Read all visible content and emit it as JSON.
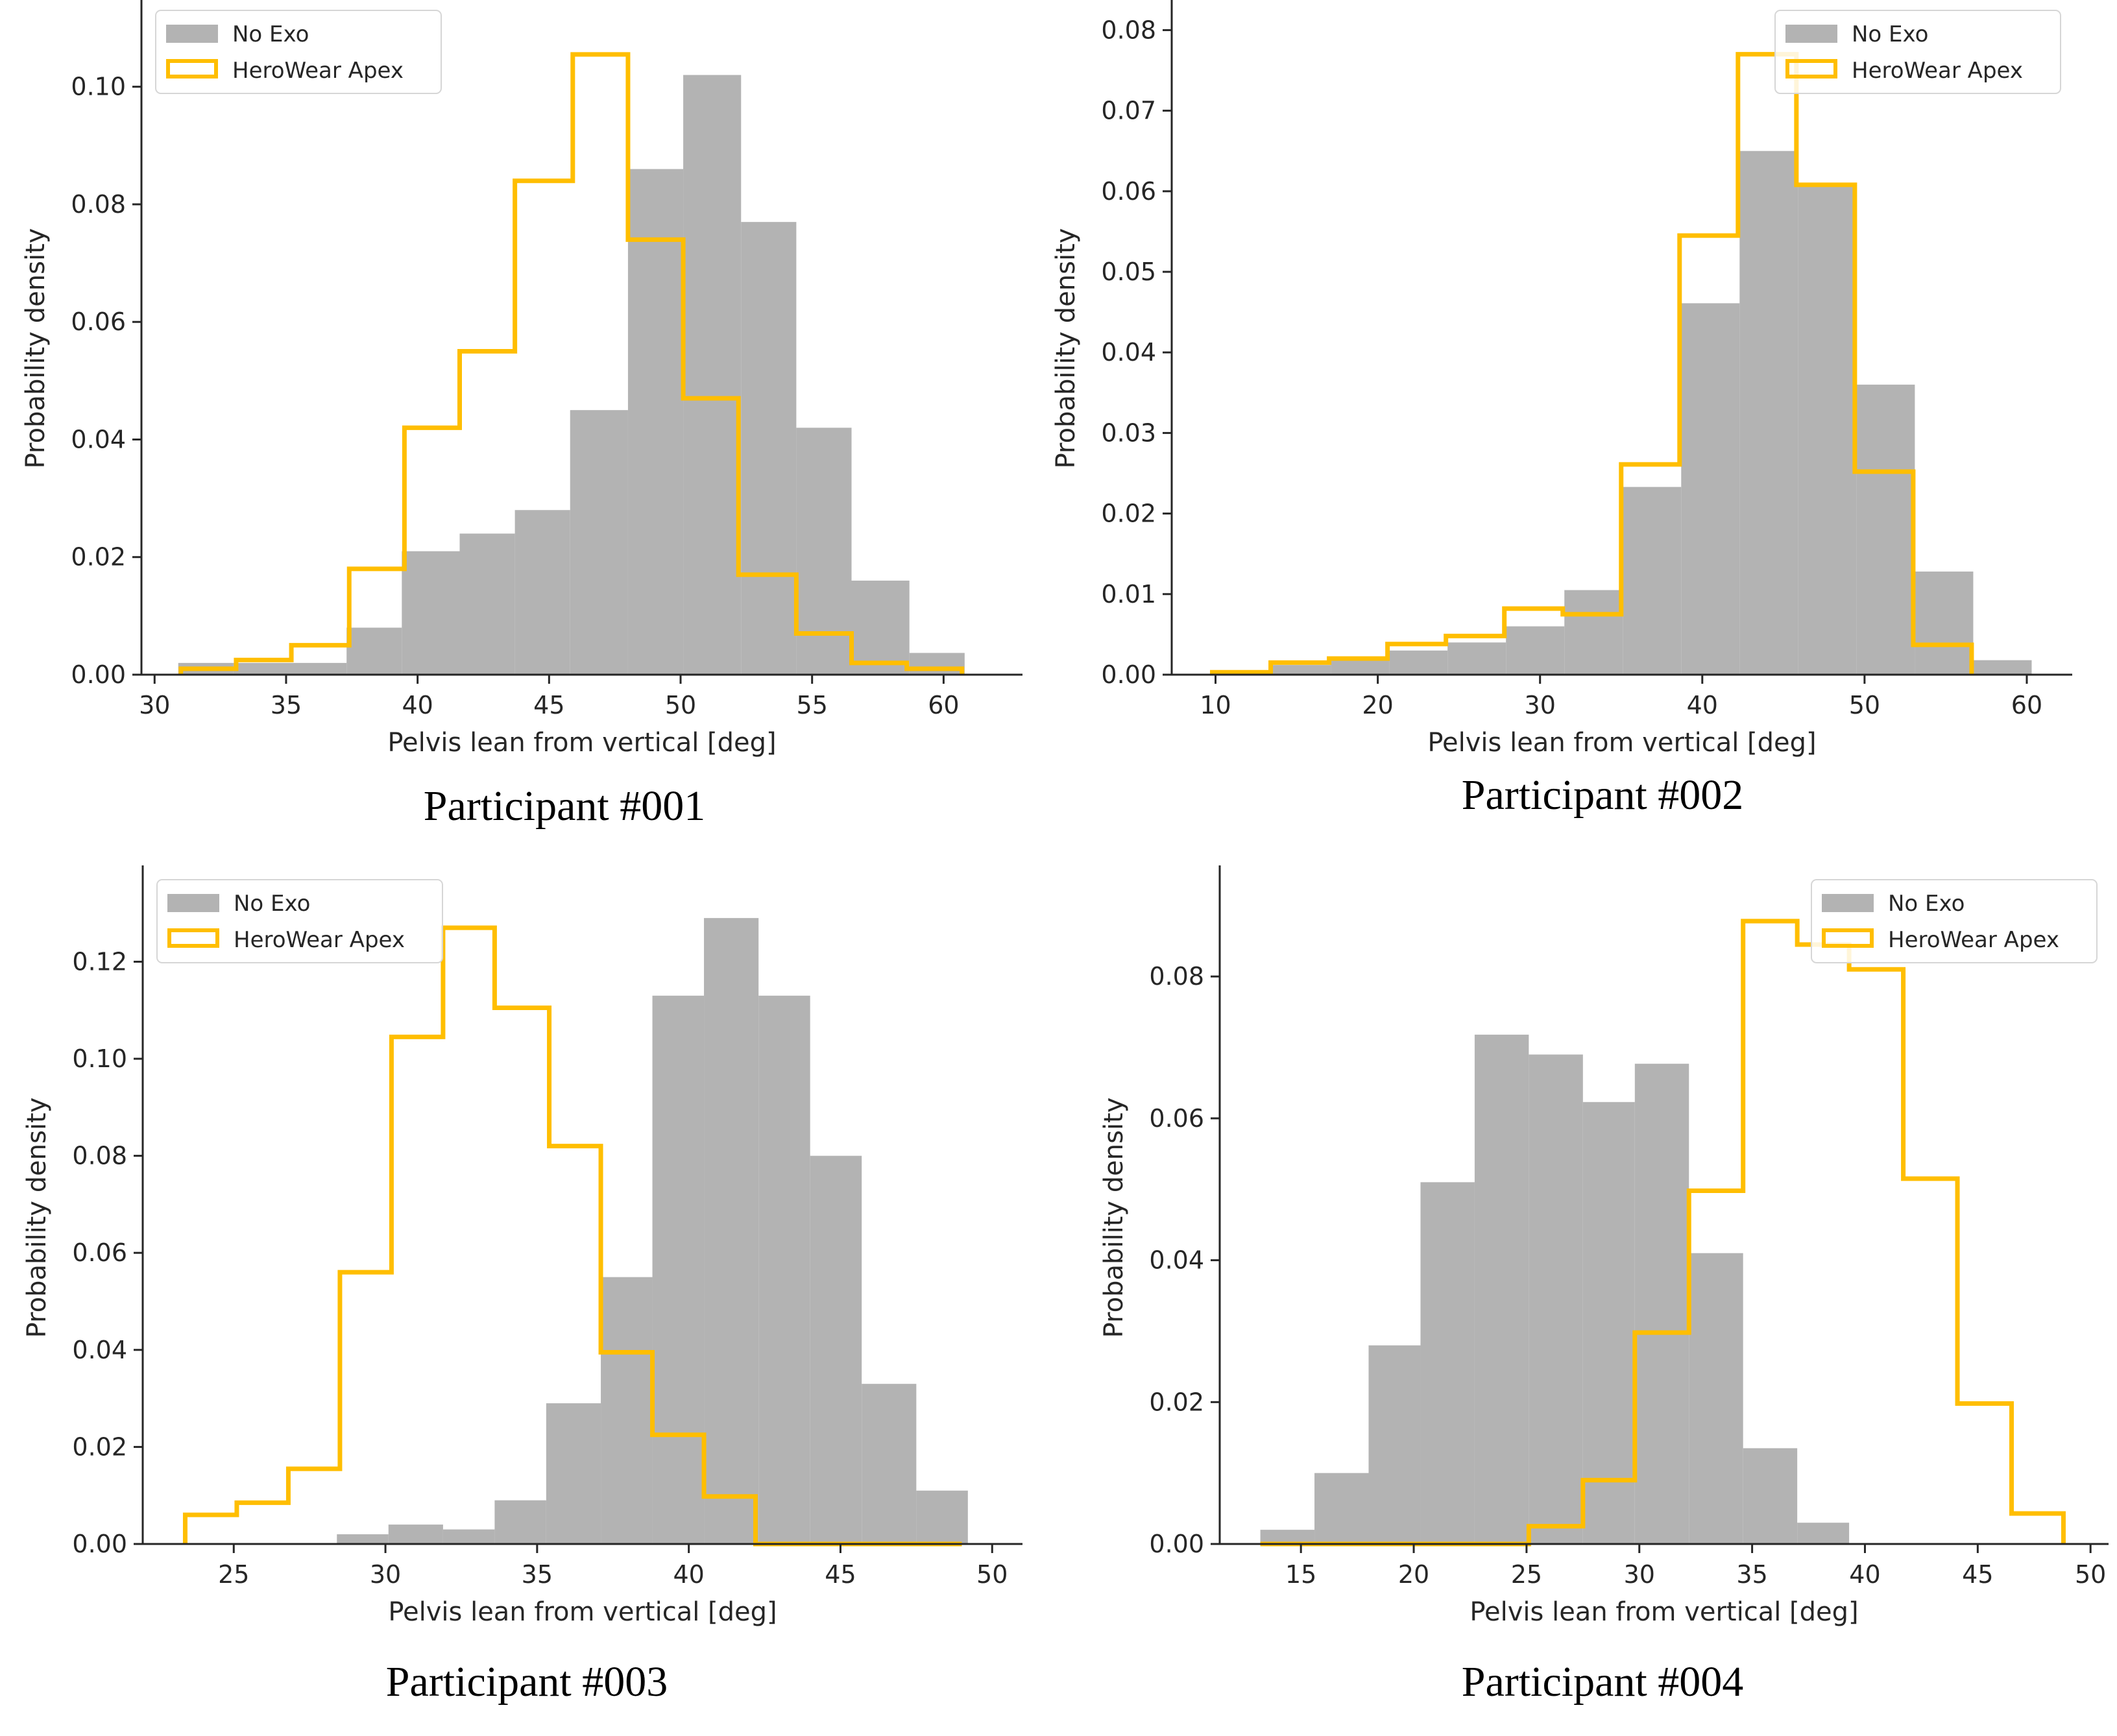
{
  "colors": {
    "no_exo": "#b3b3b3",
    "herowear": "#ffbe00",
    "axis": "#262626",
    "legend_border": "#d6d6d6"
  },
  "chart_data": [
    {
      "type": "histogram",
      "caption": "Participant #001",
      "xlabel": "Pelvis lean from vertical [deg]",
      "ylabel": "Probability density",
      "xlim": [
        29.5,
        63
      ],
      "ylim": [
        0,
        0.111
      ],
      "xticks": [
        30,
        35,
        40,
        45,
        50,
        55,
        60
      ],
      "yticks": [
        0.0,
        0.02,
        0.04,
        0.06,
        0.08,
        0.1
      ],
      "ytick_labels": [
        "0.00",
        "0.02",
        "0.04",
        "0.06",
        "0.08",
        "0.10"
      ],
      "legend_position": "top-left",
      "series": [
        {
          "name": "No Exo",
          "style": "filled",
          "edges": [
            30.9,
            33.0,
            35.1,
            37.3,
            39.4,
            41.6,
            43.7,
            45.8,
            48.0,
            50.1,
            52.3,
            54.4,
            56.5,
            58.7,
            60.8
          ],
          "values": [
            0.002,
            0.002,
            0.002,
            0.008,
            0.021,
            0.024,
            0.028,
            0.045,
            0.086,
            0.102,
            0.077,
            0.042,
            0.016,
            0.0037
          ]
        },
        {
          "name": "HeroWear Apex",
          "style": "step",
          "edges": [
            31.0,
            33.1,
            35.2,
            37.4,
            39.5,
            41.6,
            43.7,
            45.9,
            48.0,
            50.1,
            52.2,
            54.4,
            56.5,
            58.6,
            60.7
          ],
          "values": [
            0.001,
            0.0025,
            0.005,
            0.018,
            0.042,
            0.055,
            0.084,
            0.1055,
            0.074,
            0.047,
            0.017,
            0.007,
            0.002,
            0.001
          ]
        }
      ]
    },
    {
      "type": "histogram",
      "caption": "Participant #002",
      "xlabel": "Pelvis lean from vertical [deg]",
      "ylabel": "Probability density",
      "xlim": [
        7.3,
        62.8
      ],
      "ylim": [
        0,
        0.081
      ],
      "xticks": [
        10,
        20,
        30,
        40,
        50,
        60
      ],
      "yticks": [
        0.0,
        0.01,
        0.02,
        0.03,
        0.04,
        0.05,
        0.06,
        0.07,
        0.08
      ],
      "ytick_labels": [
        "0.00",
        "0.01",
        "0.02",
        "0.03",
        "0.04",
        "0.05",
        "0.06",
        "0.07",
        "0.08"
      ],
      "legend_position": "top-right",
      "series": [
        {
          "name": "No Exo",
          "style": "filled",
          "edges": [
            9.9,
            13.5,
            17.1,
            20.7,
            24.3,
            27.9,
            31.5,
            35.1,
            38.7,
            42.3,
            45.9,
            49.5,
            53.1,
            56.7,
            60.3
          ],
          "values": [
            0.0002,
            0.0012,
            0.0018,
            0.003,
            0.004,
            0.006,
            0.0105,
            0.0233,
            0.0461,
            0.065,
            0.061,
            0.036,
            0.0128,
            0.0018
          ]
        },
        {
          "name": "HeroWear Apex",
          "style": "step",
          "edges": [
            9.8,
            13.4,
            17.0,
            20.6,
            24.2,
            27.8,
            31.4,
            35.0,
            38.6,
            42.2,
            45.8,
            49.4,
            53.0,
            56.6
          ],
          "values": [
            0.0003,
            0.0015,
            0.002,
            0.0038,
            0.0048,
            0.0082,
            0.0075,
            0.0261,
            0.0545,
            0.077,
            0.0608,
            0.0252,
            0.0037
          ]
        }
      ]
    },
    {
      "type": "histogram",
      "caption": "Participant #003",
      "xlabel": "Pelvis lean from vertical [deg]",
      "ylabel": "Probability density",
      "xlim": [
        22,
        51
      ],
      "ylim": [
        0,
        0.1345
      ],
      "xticks": [
        25,
        30,
        35,
        40,
        45,
        50
      ],
      "yticks": [
        0.0,
        0.02,
        0.04,
        0.06,
        0.08,
        0.1,
        0.12
      ],
      "ytick_labels": [
        "0.00",
        "0.02",
        "0.04",
        "0.06",
        "0.08",
        "0.10",
        "0.12"
      ],
      "legend_position": "top-left",
      "series": [
        {
          "name": "No Exo",
          "style": "filled",
          "edges": [
            28.4,
            30.1,
            31.9,
            33.6,
            35.3,
            37.1,
            38.8,
            40.5,
            42.3,
            44.0,
            45.7,
            47.5,
            49.2
          ],
          "values": [
            0.002,
            0.004,
            0.003,
            0.009,
            0.029,
            0.055,
            0.113,
            0.129,
            0.113,
            0.08,
            0.033,
            0.011
          ]
        },
        {
          "name": "HeroWear Apex",
          "style": "step",
          "edges": [
            23.4,
            25.1,
            26.8,
            28.5,
            30.2,
            31.9,
            33.6,
            35.4,
            37.1,
            38.8,
            40.5,
            42.2,
            43.9,
            45.6,
            47.3,
            49.0
          ],
          "values": [
            0.006,
            0.0085,
            0.0155,
            0.056,
            0.1045,
            0.127,
            0.1105,
            0.082,
            0.0395,
            0.0225,
            0.0098,
            0.0,
            0.0,
            0.0,
            0.0
          ]
        }
      ]
    },
    {
      "type": "histogram",
      "caption": "Participant #004",
      "xlabel": "Pelvis lean from vertical [deg]",
      "ylabel": "Probability density",
      "xlim": [
        11.4,
        50.8
      ],
      "ylim": [
        0,
        0.092
      ],
      "xticks": [
        15,
        20,
        25,
        30,
        35,
        40,
        45,
        50
      ],
      "yticks": [
        0.0,
        0.02,
        0.04,
        0.06,
        0.08
      ],
      "ytick_labels": [
        "0.00",
        "0.02",
        "0.04",
        "0.06",
        "0.08"
      ],
      "legend_position": "top-right",
      "series": [
        {
          "name": "No Exo",
          "style": "filled",
          "edges": [
            13.2,
            15.6,
            18.0,
            20.3,
            22.7,
            25.1,
            27.5,
            29.8,
            32.2,
            34.6,
            37.0,
            39.3
          ],
          "values": [
            0.002,
            0.01,
            0.028,
            0.051,
            0.0718,
            0.069,
            0.0623,
            0.0677,
            0.041,
            0.0135,
            0.003
          ]
        },
        {
          "name": "HeroWear Apex",
          "style": "step",
          "edges": [
            13.2,
            15.6,
            18.0,
            20.4,
            22.7,
            25.1,
            27.5,
            29.8,
            32.2,
            34.6,
            37.0,
            39.3,
            41.7,
            44.1,
            46.5,
            48.8
          ],
          "values": [
            0.0,
            0.0,
            0.0,
            0.0,
            0.0,
            0.0025,
            0.009,
            0.0298,
            0.0498,
            0.0878,
            0.0845,
            0.081,
            0.0515,
            0.0198,
            0.0043
          ]
        }
      ]
    }
  ]
}
